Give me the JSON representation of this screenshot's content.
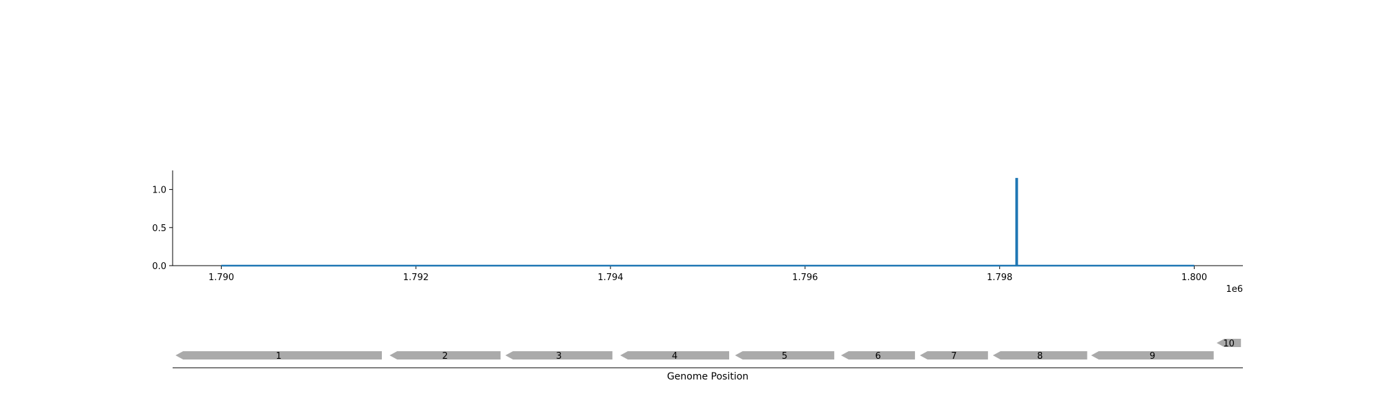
{
  "chart_data": {
    "type": "line",
    "title": "",
    "xlabel": "Genome Position",
    "ylabel": "",
    "x_offset_label": "1e6",
    "x_scale": 1000000,
    "xlim": [
      1789500,
      1800500
    ],
    "ylim": [
      0,
      1.25
    ],
    "x_ticks": [
      1790000,
      1792000,
      1794000,
      1796000,
      1798000,
      1800000
    ],
    "x_tick_labels": [
      "1.790",
      "1.792",
      "1.794",
      "1.796",
      "1.798",
      "1.800"
    ],
    "y_ticks": [
      0,
      0.5,
      1.0
    ],
    "y_tick_labels": [
      "0.0",
      "0.5",
      "1.0"
    ],
    "grid": false,
    "series": [
      {
        "color": "#1f77b4",
        "x": [
          1790000,
          1798170,
          1798170,
          1798180,
          1798180,
          1800000
        ],
        "y": [
          0,
          0,
          1.14,
          1.14,
          0,
          0
        ]
      }
    ],
    "genes": {
      "color": "#aaaaaa",
      "items": [
        {
          "label": "1",
          "start": 1789530,
          "end": 1791650,
          "strand": "-",
          "row": 0
        },
        {
          "label": "2",
          "start": 1791730,
          "end": 1792870,
          "strand": "-",
          "row": 0
        },
        {
          "label": "3",
          "start": 1792920,
          "end": 1794020,
          "strand": "-",
          "row": 0
        },
        {
          "label": "4",
          "start": 1794100,
          "end": 1795220,
          "strand": "-",
          "row": 0
        },
        {
          "label": "5",
          "start": 1795280,
          "end": 1796300,
          "strand": "-",
          "row": 0
        },
        {
          "label": "6",
          "start": 1796370,
          "end": 1797130,
          "strand": "-",
          "row": 0
        },
        {
          "label": "7",
          "start": 1797180,
          "end": 1797880,
          "strand": "-",
          "row": 0
        },
        {
          "label": "8",
          "start": 1797930,
          "end": 1798900,
          "strand": "-",
          "row": 0
        },
        {
          "label": "9",
          "start": 1798940,
          "end": 1800200,
          "strand": "-",
          "row": 0
        },
        {
          "label": "10",
          "start": 1800230,
          "end": 1800480,
          "strand": "-",
          "row": 1
        }
      ]
    }
  }
}
